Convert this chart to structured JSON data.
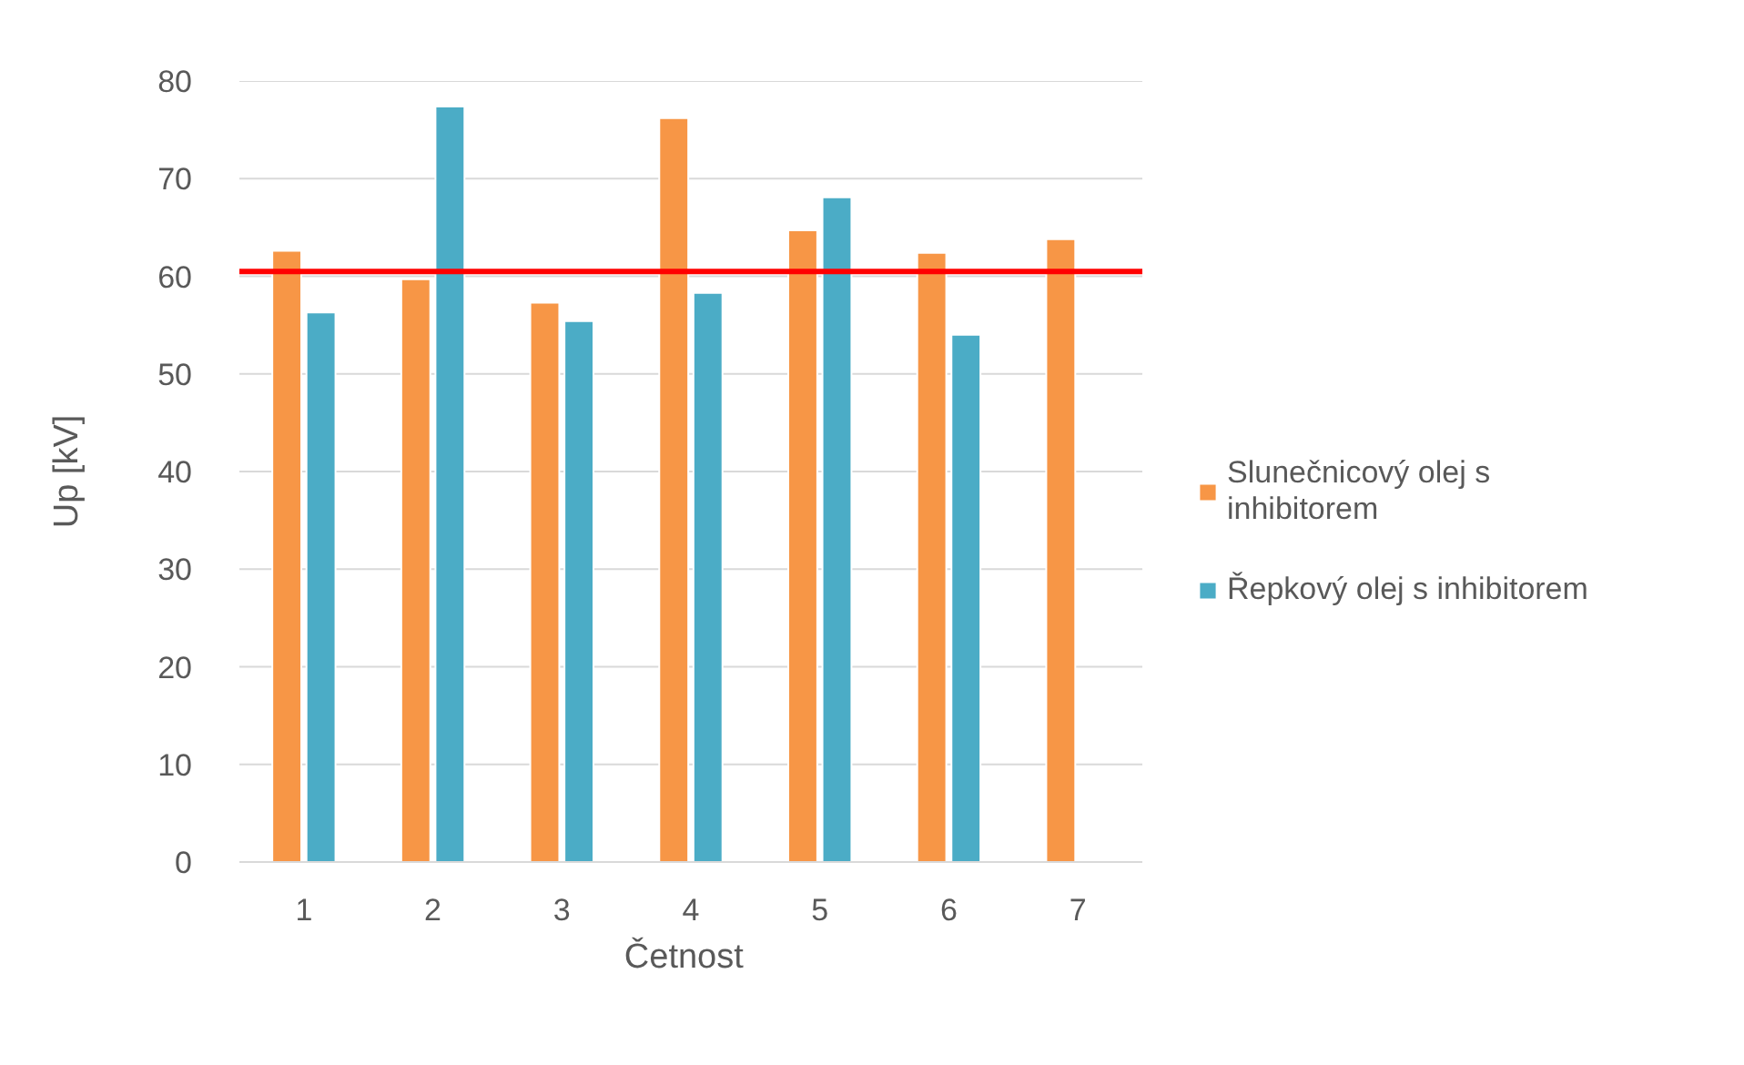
{
  "chart_data": {
    "type": "bar",
    "xlabel": "Četnost",
    "ylabel": "Up [kV]",
    "categories": [
      "1",
      "2",
      "3",
      "4",
      "5",
      "6",
      "7"
    ],
    "series": [
      {
        "name": "Slunečnicový olej s inhibitorem",
        "color": "#f79646",
        "values": [
          62.6,
          59.7,
          57.3,
          76.2,
          64.7,
          62.4,
          63.8
        ]
      },
      {
        "name": "Řepkový olej s inhibitorem",
        "color": "#4bacc6",
        "values": [
          56.3,
          77.4,
          55.4,
          58.3,
          68.1,
          54.0,
          null
        ]
      }
    ],
    "ylim": [
      0,
      80
    ],
    "yticks": [
      0,
      10,
      20,
      30,
      40,
      50,
      60,
      70,
      80
    ],
    "grid": "y",
    "legend": "right",
    "ref_lines": [
      {
        "axis": "y",
        "value": 60.5,
        "color": "#ff0000"
      }
    ]
  }
}
